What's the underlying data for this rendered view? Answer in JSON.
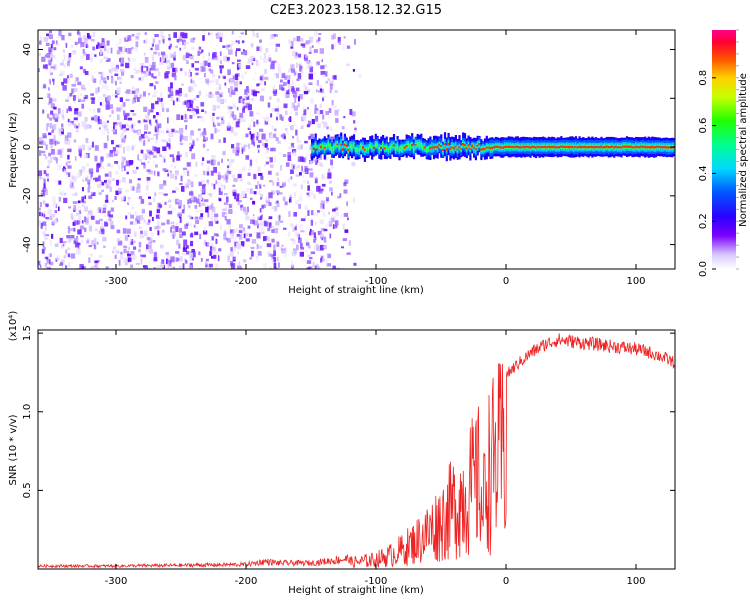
{
  "title": "C2E3.2023.158.12.32.G15",
  "colors": {
    "snr_line": "#ee2222",
    "noise": "#8a2be2",
    "axes": "#000000"
  },
  "chart_data": [
    {
      "type": "heatmap",
      "xlabel": "Height of straight line (km)",
      "ylabel": "Frequency (Hz)",
      "xlim": [
        -360,
        130
      ],
      "ylim": [
        -50,
        48
      ],
      "x_ticks": [
        "-300",
        "-200",
        "-100",
        "0",
        "100"
      ],
      "x_tick_values": [
        -300,
        -200,
        -100,
        0,
        100
      ],
      "y_ticks": [
        "40",
        "20",
        "0",
        "-20",
        "-40"
      ],
      "y_tick_values": [
        40,
        20,
        0,
        -20,
        -40
      ],
      "colorbar": {
        "label": "Normalized spectral amplitude",
        "range": [
          0,
          1
        ],
        "ticks": [
          "0.0",
          "0.2",
          "0.4",
          "0.6",
          "0.8"
        ],
        "tick_values": [
          0.0,
          0.2,
          0.4,
          0.6,
          0.8
        ]
      },
      "noise_region_x": [
        -360,
        -120
      ],
      "signal_band_x": [
        -150,
        130
      ],
      "signal_center_frequency": 0,
      "signal_band_halfwidth_hz": 4
    },
    {
      "type": "line",
      "xlabel": "Height of straight line (km)",
      "ylabel": "SNR (10 * v/v)",
      "y_exponent_label": "(x10⁴)",
      "xlim": [
        -360,
        130
      ],
      "ylim": [
        0,
        1.52
      ],
      "x_ticks": [
        "-300",
        "-200",
        "-100",
        "0",
        "100"
      ],
      "x_tick_values": [
        -300,
        -200,
        -100,
        0,
        100
      ],
      "y_ticks": [
        "0.5",
        "1.0",
        "1.5"
      ],
      "y_tick_values": [
        0.5,
        1.0,
        1.5
      ],
      "series": [
        {
          "x": [
            -360,
            -300,
            -250,
            -200,
            -185,
            -175,
            -150,
            -130,
            -110,
            -100,
            -90,
            -80,
            -70,
            -60,
            -50,
            -40,
            -30,
            -20,
            -18,
            -15,
            -10,
            -5,
            0,
            10,
            20,
            30,
            40,
            50,
            60,
            70,
            80,
            90,
            100,
            110,
            120,
            130
          ],
          "values": [
            0.02,
            0.02,
            0.025,
            0.03,
            0.05,
            0.04,
            0.04,
            0.06,
            0.08,
            0.1,
            0.14,
            0.2,
            0.28,
            0.38,
            0.5,
            0.65,
            0.8,
            0.95,
            0.55,
            1.0,
            1.1,
            1.18,
            1.25,
            1.33,
            1.4,
            1.45,
            1.48,
            1.47,
            1.46,
            1.45,
            1.44,
            1.43,
            1.42,
            1.4,
            1.37,
            1.33
          ]
        }
      ]
    }
  ]
}
